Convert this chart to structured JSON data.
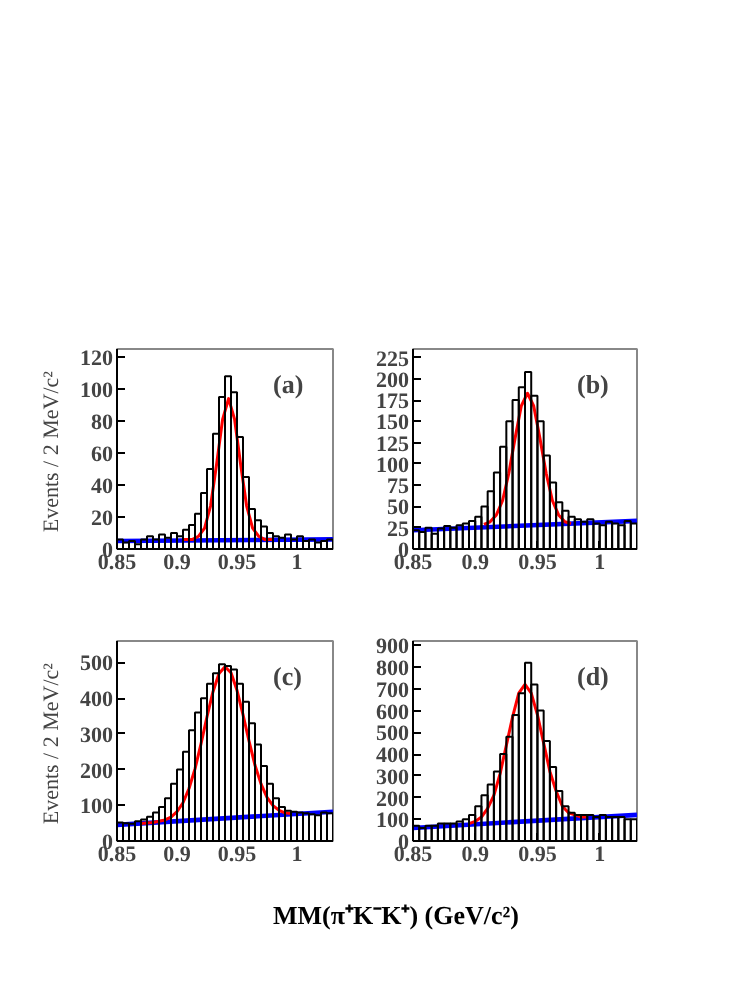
{
  "chart_data": [
    {
      "type": "histogram",
      "ylabel": "Events /  2 MeV/c²",
      "annotations": [
        "(a)"
      ],
      "color": "#000000",
      "bins": [
        0.85,
        0.855,
        0.86,
        0.865,
        0.87,
        0.875,
        0.88,
        0.885,
        0.89,
        0.895,
        0.9,
        0.905,
        0.91,
        0.915,
        0.92,
        0.925,
        0.93,
        0.935,
        0.94,
        0.945,
        0.95,
        0.955,
        0.96,
        0.965,
        0.97,
        0.975,
        0.98,
        0.985,
        0.99,
        0.995,
        1.0,
        1.005,
        1.01,
        1.015,
        1.02,
        1.025,
        1.03
      ],
      "values": [
        6,
        4,
        5,
        3,
        6,
        8,
        6,
        9,
        7,
        10,
        8,
        12,
        15,
        22,
        35,
        50,
        72,
        95,
        108,
        98,
        70,
        45,
        25,
        18,
        14,
        10,
        8,
        7,
        9,
        6,
        8,
        5,
        6,
        4,
        5,
        6
      ],
      "series": [
        {
          "type": "line",
          "color": "#ff0000",
          "x": [
            0.905,
            0.913,
            0.918,
            0.923,
            0.928,
            0.933,
            0.938,
            0.943,
            0.948,
            0.953,
            0.958,
            0.963,
            0.968,
            0.973,
            0.98
          ],
          "values": [
            6,
            6,
            8,
            13,
            27,
            53,
            81,
            94,
            81,
            53,
            27,
            13,
            8,
            6,
            6
          ]
        },
        {
          "type": "line",
          "color": "#0000ff",
          "x": [
            0.85,
            1.03
          ],
          "values": [
            5,
            6
          ]
        }
      ],
      "xlim": [
        0.85,
        1.03
      ],
      "xticks": [
        0.85,
        0.9,
        0.95,
        1
      ],
      "ylim": [
        0,
        125
      ],
      "yticks": [
        0,
        20,
        40,
        60,
        80,
        100,
        120
      ]
    },
    {
      "type": "histogram",
      "annotations": [
        "(b)"
      ],
      "color": "#000000",
      "bins": [
        0.85,
        0.855,
        0.86,
        0.865,
        0.87,
        0.875,
        0.88,
        0.885,
        0.89,
        0.895,
        0.9,
        0.905,
        0.91,
        0.915,
        0.92,
        0.925,
        0.93,
        0.935,
        0.94,
        0.945,
        0.95,
        0.955,
        0.96,
        0.965,
        0.97,
        0.975,
        0.98,
        0.985,
        0.99,
        0.995,
        1.0,
        1.005,
        1.01,
        1.015,
        1.02,
        1.025,
        1.03
      ],
      "values": [
        22,
        20,
        25,
        18,
        24,
        27,
        25,
        28,
        30,
        33,
        38,
        50,
        68,
        90,
        120,
        150,
        175,
        190,
        208,
        180,
        150,
        110,
        78,
        55,
        45,
        38,
        35,
        32,
        35,
        30,
        28,
        32,
        30,
        28,
        33,
        30
      ],
      "series": [
        {
          "type": "line",
          "color": "#ff0000",
          "x": [
            0.907,
            0.912,
            0.917,
            0.922,
            0.927,
            0.932,
            0.937,
            0.942,
            0.947,
            0.952,
            0.957,
            0.962,
            0.967,
            0.972,
            0.977
          ],
          "values": [
            29,
            32,
            40,
            57,
            89,
            130,
            168,
            183,
            168,
            130,
            89,
            57,
            40,
            32,
            30
          ]
        },
        {
          "type": "line",
          "color": "#0000ff",
          "x": [
            0.85,
            1.03
          ],
          "values": [
            22,
            33
          ]
        }
      ],
      "xlim": [
        0.85,
        1.03
      ],
      "xticks": [
        0.85,
        0.9,
        0.95,
        1
      ],
      "ylim": [
        0,
        235
      ],
      "yticks": [
        0,
        25,
        50,
        75,
        100,
        125,
        150,
        175,
        200,
        225
      ]
    },
    {
      "type": "histogram",
      "ylabel": "Events /  2 MeV/c²",
      "xlabel": "MM(π⁺K⁻K⁺) (GeV/c²)",
      "annotations": [
        "(c)"
      ],
      "color": "#000000",
      "bins": [
        0.85,
        0.855,
        0.86,
        0.865,
        0.87,
        0.875,
        0.88,
        0.885,
        0.89,
        0.895,
        0.9,
        0.905,
        0.91,
        0.915,
        0.92,
        0.925,
        0.93,
        0.935,
        0.94,
        0.945,
        0.95,
        0.955,
        0.96,
        0.965,
        0.97,
        0.975,
        0.98,
        0.985,
        0.99,
        0.995,
        1.0,
        1.005,
        1.01,
        1.015,
        1.02,
        1.025,
        1.03
      ],
      "values": [
        52,
        50,
        48,
        55,
        60,
        68,
        80,
        95,
        120,
        160,
        200,
        250,
        310,
        360,
        400,
        440,
        470,
        495,
        490,
        480,
        440,
        390,
        330,
        270,
        210,
        160,
        120,
        95,
        85,
        82,
        80,
        78,
        75,
        72,
        80,
        78
      ],
      "series": [
        {
          "type": "line",
          "color": "#ff0000",
          "x": [
            0.87,
            0.88,
            0.89,
            0.895,
            0.9,
            0.905,
            0.91,
            0.915,
            0.92,
            0.925,
            0.93,
            0.935,
            0.94,
            0.945,
            0.95,
            0.955,
            0.96,
            0.965,
            0.97,
            0.975,
            0.98,
            0.985,
            0.99,
            0.995
          ],
          "values": [
            49,
            52,
            59,
            67,
            82,
            107,
            147,
            202,
            272,
            348,
            418,
            469,
            488,
            471,
            422,
            354,
            280,
            212,
            160,
            122,
            99,
            86,
            79,
            77
          ]
        },
        {
          "type": "line",
          "color": "#0000ff",
          "x": [
            0.85,
            1.03
          ],
          "values": [
            45,
            82
          ]
        }
      ],
      "xlim": [
        0.85,
        1.03
      ],
      "xticks": [
        0.85,
        0.9,
        0.95,
        1
      ],
      "ylim": [
        0,
        560
      ],
      "yticks": [
        0,
        100,
        200,
        300,
        400,
        500
      ]
    },
    {
      "type": "histogram",
      "annotations": [
        "(d)"
      ],
      "color": "#000000",
      "bins": [
        0.85,
        0.855,
        0.86,
        0.865,
        0.87,
        0.875,
        0.88,
        0.885,
        0.89,
        0.895,
        0.9,
        0.905,
        0.91,
        0.915,
        0.92,
        0.925,
        0.93,
        0.935,
        0.94,
        0.945,
        0.95,
        0.955,
        0.96,
        0.965,
        0.97,
        0.975,
        0.98,
        0.985,
        0.99,
        0.995,
        1.0,
        1.005,
        1.01,
        1.015,
        1.02,
        1.025,
        1.03
      ],
      "values": [
        70,
        60,
        70,
        70,
        80,
        80,
        80,
        90,
        100,
        120,
        160,
        210,
        260,
        320,
        400,
        480,
        580,
        680,
        820,
        720,
        600,
        460,
        340,
        230,
        160,
        130,
        120,
        120,
        120,
        110,
        120,
        110,
        110,
        110,
        100,
        100
      ],
      "series": [
        {
          "type": "line",
          "color": "#ff0000",
          "x": [
            0.895,
            0.9,
            0.905,
            0.91,
            0.915,
            0.92,
            0.925,
            0.93,
            0.935,
            0.94,
            0.945,
            0.95,
            0.955,
            0.96,
            0.965,
            0.97,
            0.975,
            0.98,
            0.985,
            0.99
          ],
          "values": [
            80,
            90,
            110,
            150,
            210,
            310,
            440,
            570,
            680,
            720,
            680,
            580,
            450,
            320,
            230,
            160,
            130,
            120,
            110,
            110
          ]
        },
        {
          "type": "line",
          "color": "#0000ff",
          "x": [
            0.85,
            1.03
          ],
          "values": [
            60,
            120
          ]
        }
      ],
      "xlim": [
        0.85,
        1.03
      ],
      "xticks": [
        0.85,
        0.9,
        0.95,
        1
      ],
      "ylim": [
        0,
        920
      ],
      "yticks": [
        0,
        100,
        200,
        300,
        400,
        500,
        600,
        700,
        800,
        900
      ]
    }
  ]
}
